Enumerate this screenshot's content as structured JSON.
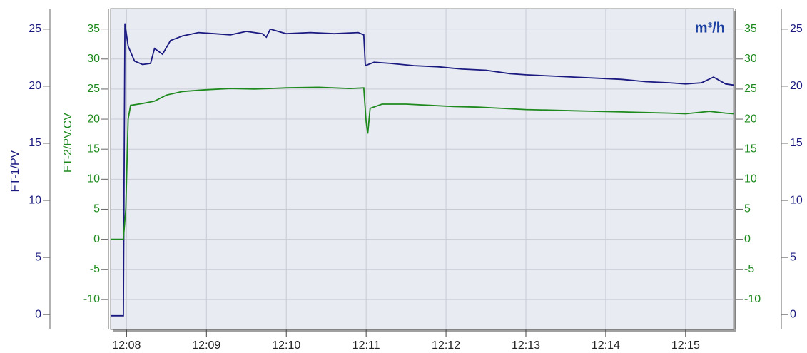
{
  "chart_data": {
    "type": "line",
    "annotation": "m³/h",
    "y_label": "FT-1/PV",
    "y2_label": "FT-2/PV.CV",
    "xlim": [
      727.8,
      735.6
    ],
    "xticks": [
      {
        "value": 728,
        "label": "12:08"
      },
      {
        "value": 729,
        "label": "12:09"
      },
      {
        "value": 730,
        "label": "12:10"
      },
      {
        "value": 731,
        "label": "12:11"
      },
      {
        "value": 732,
        "label": "12:12"
      },
      {
        "value": 733,
        "label": "12:13"
      },
      {
        "value": 734,
        "label": "12:14"
      },
      {
        "value": 735,
        "label": "12:15"
      }
    ],
    "ylim": [
      -1.3,
      26.8
    ],
    "yticks": [
      0,
      5,
      10,
      15,
      20,
      25
    ],
    "y2lim": [
      -15,
      38.4
    ],
    "y2ticks": [
      -10,
      -5,
      0,
      5,
      10,
      15,
      20,
      25,
      30,
      35
    ],
    "grid": "y2",
    "series": [
      {
        "name": "FT-1/PV",
        "color": "#1a1a80",
        "axis": "y",
        "x": [
          727.8,
          727.96,
          727.98,
          728.02,
          728.1,
          728.2,
          728.3,
          728.35,
          728.45,
          728.55,
          728.7,
          728.9,
          729.1,
          729.3,
          729.5,
          729.7,
          729.75,
          729.8,
          730.0,
          730.3,
          730.6,
          730.9,
          730.97,
          730.99,
          731.1,
          731.3,
          731.6,
          731.9,
          732.2,
          732.5,
          732.8,
          733.0,
          733.3,
          733.6,
          733.9,
          734.2,
          734.5,
          734.8,
          735.0,
          735.2,
          735.35,
          735.5,
          735.6
        ],
        "values": [
          -0.1,
          -0.1,
          25.5,
          23.5,
          22.2,
          21.9,
          22.0,
          23.3,
          22.8,
          24.0,
          24.4,
          24.7,
          24.6,
          24.5,
          24.8,
          24.6,
          24.3,
          25.0,
          24.6,
          24.7,
          24.6,
          24.7,
          24.5,
          21.8,
          22.1,
          22.0,
          21.8,
          21.7,
          21.5,
          21.4,
          21.1,
          21.0,
          20.9,
          20.8,
          20.7,
          20.6,
          20.4,
          20.3,
          20.2,
          20.3,
          20.8,
          20.2,
          20.1
        ]
      },
      {
        "name": "FT-2/PV.CV",
        "color": "#1e8a1e",
        "axis": "y2",
        "x": [
          727.8,
          727.96,
          727.99,
          728.02,
          728.05,
          728.2,
          728.35,
          728.5,
          728.7,
          729.0,
          729.3,
          729.6,
          730.0,
          730.4,
          730.8,
          730.97,
          731.0,
          731.02,
          731.05,
          731.2,
          731.5,
          731.8,
          732.1,
          732.4,
          732.7,
          733.0,
          733.3,
          733.6,
          733.9,
          734.2,
          734.5,
          734.8,
          735.0,
          735.3,
          735.5,
          735.6
        ],
        "values": [
          0,
          0,
          5,
          20,
          22.3,
          22.6,
          23.0,
          24.0,
          24.6,
          24.9,
          25.1,
          25.0,
          25.2,
          25.3,
          25.1,
          25.2,
          19.5,
          17.6,
          21.8,
          22.5,
          22.5,
          22.3,
          22.1,
          22.0,
          21.8,
          21.6,
          21.5,
          21.4,
          21.3,
          21.2,
          21.1,
          21.0,
          20.9,
          21.3,
          21.0,
          20.9
        ]
      }
    ]
  }
}
